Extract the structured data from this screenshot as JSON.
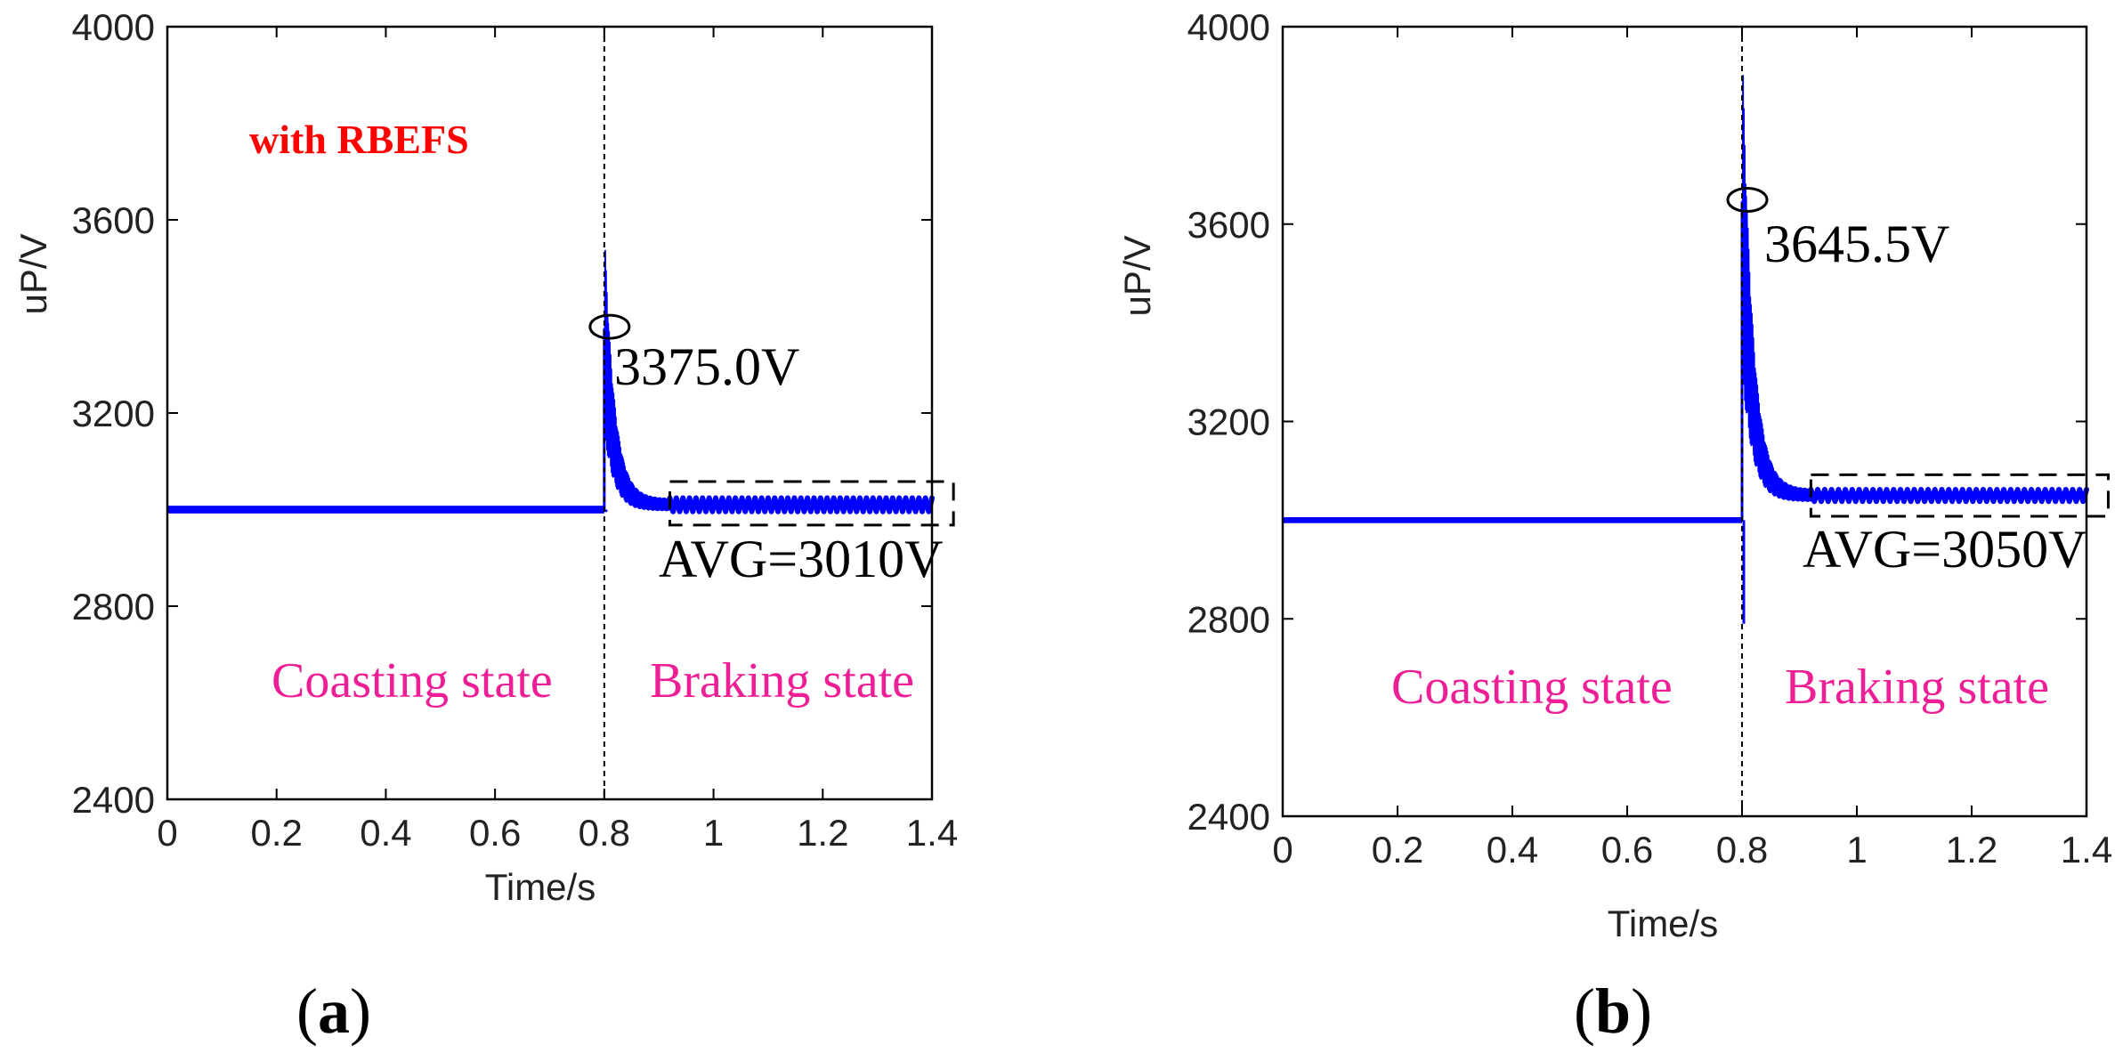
{
  "colors": {
    "signal": "#0000ff",
    "state_label": "#ee1f96",
    "tag": "#ff0000",
    "axis": "#000000"
  },
  "chart_data": [
    {
      "type": "line",
      "panel_label": "(a)",
      "tag": "with RBEFS",
      "xlabel": "Time/s",
      "ylabel": "uP/V",
      "xlim": [
        0,
        1.4
      ],
      "ylim": [
        2400,
        4000
      ],
      "xticks": [
        "0",
        "0.2",
        "0.4",
        "0.6",
        "0.8",
        "1",
        "1.2",
        "1.4"
      ],
      "yticks": [
        "2400",
        "2800",
        "3200",
        "3600",
        "4000"
      ],
      "switch_time": 0.8,
      "series": [
        {
          "name": "uP",
          "pre_level": 3000,
          "pre_ripple": 8,
          "peak": 3375,
          "dip": 2995,
          "settle_time": 0.92,
          "avg": 3010,
          "ripple": 14
        }
      ],
      "annotations": {
        "peak_label": "3375.0V",
        "avg_label": "AVG=3010V",
        "avg_box": {
          "x": [
            0.92,
            1.41
          ],
          "y": [
            2968,
            3058
          ]
        },
        "left_state": "Coasting state",
        "right_state": "Braking state"
      }
    },
    {
      "type": "line",
      "panel_label": "(b)",
      "xlabel": "Time/s",
      "ylabel": "uP/V",
      "xlim": [
        0,
        1.4
      ],
      "ylim": [
        2400,
        4000
      ],
      "xticks": [
        "0",
        "0.2",
        "0.4",
        "0.6",
        "0.8",
        "1",
        "1.2",
        "1.4"
      ],
      "yticks": [
        "2400",
        "2800",
        "3200",
        "3600",
        "4000"
      ],
      "switch_time": 0.8,
      "series": [
        {
          "name": "uP",
          "pre_level": 3000,
          "pre_ripple": 6,
          "peak": 3645.5,
          "dip": 2790,
          "settle_time": 0.92,
          "avg": 3050,
          "ripple": 12
        }
      ],
      "annotations": {
        "peak_label": "3645.5V",
        "avg_label": "AVG=3050V",
        "avg_box": {
          "x": [
            0.92,
            1.41
          ],
          "y": [
            3008,
            3092
          ]
        },
        "left_state": "Coasting state",
        "right_state": "Braking state"
      }
    }
  ]
}
